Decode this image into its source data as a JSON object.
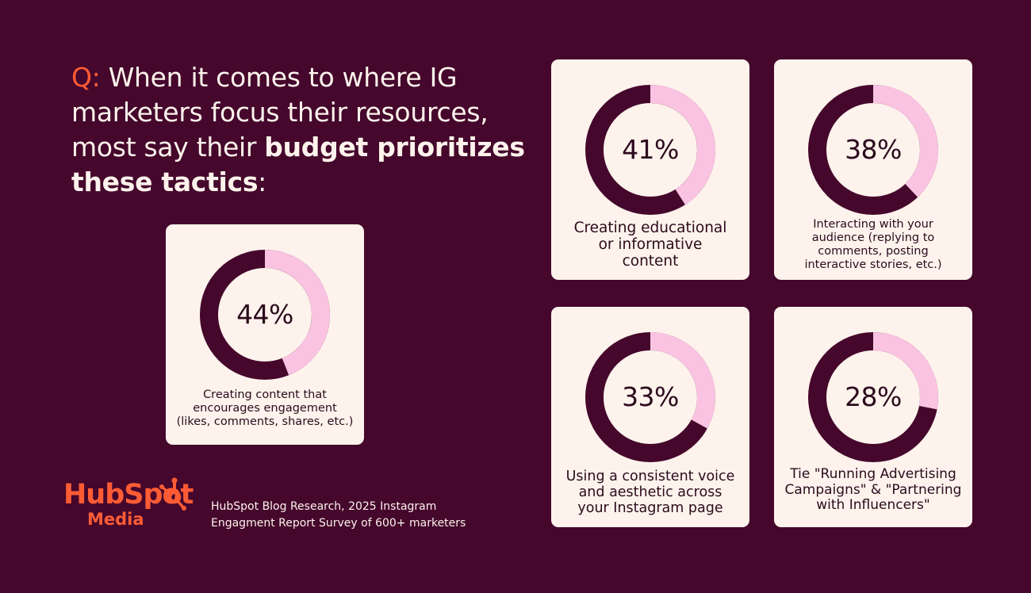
{
  "headline": {
    "prefix": "Q:",
    "text": "When it comes to where IG marketers focus their resources, most say their",
    "bold": "budget prioritizes these tactics",
    "suffix": ":"
  },
  "chart_data": {
    "type": "pie",
    "style": "donut",
    "colors": {
      "value": "#f9c3e1",
      "remainder": "#45072c",
      "card": "#fdf3ec",
      "background": "#45072c",
      "accent": "#ff5c35"
    },
    "items": [
      {
        "value": 44,
        "value_label": "44%",
        "label": "Creating content that\nencourages engagement\n(likes, comments, shares, etc.)"
      },
      {
        "value": 41,
        "value_label": "41%",
        "label": "Creating educational\nor informative\ncontent"
      },
      {
        "value": 38,
        "value_label": "38%",
        "label": "Interacting with your\naudience (replying to\ncomments, posting\ninteractive stories, etc.)"
      },
      {
        "value": 33,
        "value_label": "33%",
        "label": "Using a consistent voice\nand aesthetic across\nyour Instagram page"
      },
      {
        "value": 28,
        "value_label": "28%",
        "label": "Tie \"Running Advertising\nCampaigns\" & \"Partnering\nwith Influencers\""
      }
    ]
  },
  "brand": {
    "name": "HubSpot",
    "sub": "Media",
    "icon": "hubspot-sprocket-icon"
  },
  "source": "HubSpot Blog Research, 2025 Instagram\nEngagment Report Survey of 600+ marketers"
}
